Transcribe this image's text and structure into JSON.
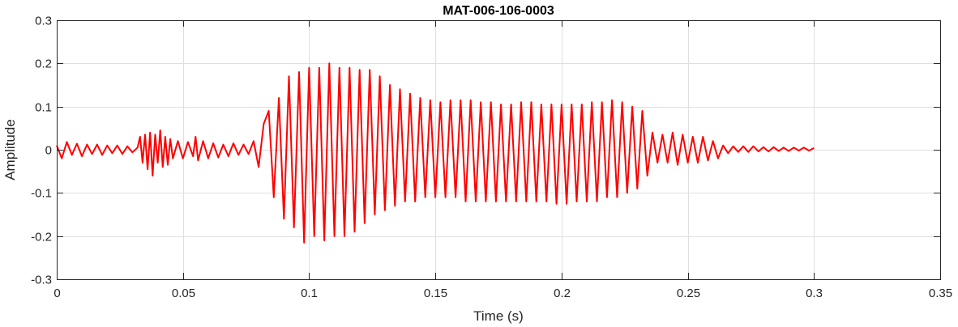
{
  "chart_data": {
    "type": "line",
    "title": "MAT-006-106-0003",
    "xlabel": "Time (s)",
    "ylabel": "Amplitude",
    "xlim": [
      0,
      0.35
    ],
    "ylim": [
      -0.3,
      0.3
    ],
    "grid": true,
    "xticks": [
      0,
      0.05,
      0.1,
      0.15,
      0.2,
      0.25,
      0.3,
      0.35
    ],
    "xtick_labels": [
      "0",
      "0.05",
      "0.1",
      "0.15",
      "0.2",
      "0.25",
      "0.3",
      "0.35"
    ],
    "yticks": [
      -0.3,
      -0.2,
      -0.1,
      0,
      0.1,
      0.2,
      0.3
    ],
    "ytick_labels": [
      "-0.3",
      "-0.2",
      "-0.1",
      "0",
      "0.1",
      "0.2",
      "0.3"
    ],
    "series": [
      {
        "color": "#ff0000",
        "points": [
          [
            0,
            0.01
          ],
          [
            0.002,
            -0.02
          ],
          [
            0.004,
            0.018
          ],
          [
            0.006,
            -0.012
          ],
          [
            0.008,
            0.014
          ],
          [
            0.01,
            -0.015
          ],
          [
            0.012,
            0.012
          ],
          [
            0.014,
            -0.01
          ],
          [
            0.016,
            0.012
          ],
          [
            0.018,
            -0.012
          ],
          [
            0.02,
            0.01
          ],
          [
            0.022,
            -0.008
          ],
          [
            0.024,
            0.01
          ],
          [
            0.026,
            -0.01
          ],
          [
            0.028,
            0.008
          ],
          [
            0.03,
            -0.006
          ],
          [
            0.032,
            0.005
          ],
          [
            0.033,
            0.03
          ],
          [
            0.034,
            -0.03
          ],
          [
            0.035,
            0.035
          ],
          [
            0.036,
            -0.045
          ],
          [
            0.037,
            0.04
          ],
          [
            0.038,
            -0.06
          ],
          [
            0.039,
            0.035
          ],
          [
            0.04,
            -0.03
          ],
          [
            0.041,
            0.045
          ],
          [
            0.042,
            -0.04
          ],
          [
            0.043,
            0.03
          ],
          [
            0.044,
            -0.035
          ],
          [
            0.045,
            0.025
          ],
          [
            0.046,
            -0.02
          ],
          [
            0.048,
            0.02
          ],
          [
            0.05,
            -0.02
          ],
          [
            0.052,
            0.018
          ],
          [
            0.054,
            -0.015
          ],
          [
            0.055,
            0.03
          ],
          [
            0.056,
            -0.025
          ],
          [
            0.058,
            0.02
          ],
          [
            0.06,
            -0.02
          ],
          [
            0.062,
            0.015
          ],
          [
            0.064,
            -0.018
          ],
          [
            0.066,
            0.012
          ],
          [
            0.068,
            -0.015
          ],
          [
            0.07,
            0.015
          ],
          [
            0.072,
            -0.012
          ],
          [
            0.074,
            0.012
          ],
          [
            0.076,
            -0.01
          ],
          [
            0.078,
            0.02
          ],
          [
            0.08,
            -0.04
          ],
          [
            0.082,
            0.06
          ],
          [
            0.084,
            0.09
          ],
          [
            0.086,
            -0.11
          ],
          [
            0.088,
            0.12
          ],
          [
            0.09,
            -0.16
          ],
          [
            0.092,
            0.17
          ],
          [
            0.094,
            -0.18
          ],
          [
            0.096,
            0.18
          ],
          [
            0.098,
            -0.215
          ],
          [
            0.1,
            0.19
          ],
          [
            0.102,
            -0.2
          ],
          [
            0.104,
            0.19
          ],
          [
            0.106,
            -0.21
          ],
          [
            0.108,
            0.2
          ],
          [
            0.11,
            -0.2
          ],
          [
            0.112,
            0.19
          ],
          [
            0.114,
            -0.2
          ],
          [
            0.116,
            0.19
          ],
          [
            0.118,
            -0.19
          ],
          [
            0.12,
            0.185
          ],
          [
            0.122,
            -0.17
          ],
          [
            0.124,
            0.185
          ],
          [
            0.126,
            -0.15
          ],
          [
            0.128,
            0.17
          ],
          [
            0.13,
            -0.14
          ],
          [
            0.132,
            0.15
          ],
          [
            0.134,
            -0.13
          ],
          [
            0.136,
            0.14
          ],
          [
            0.138,
            -0.12
          ],
          [
            0.14,
            0.13
          ],
          [
            0.142,
            -0.12
          ],
          [
            0.144,
            0.12
          ],
          [
            0.146,
            -0.11
          ],
          [
            0.148,
            0.115
          ],
          [
            0.15,
            -0.11
          ],
          [
            0.152,
            0.11
          ],
          [
            0.154,
            -0.11
          ],
          [
            0.156,
            0.115
          ],
          [
            0.158,
            -0.11
          ],
          [
            0.16,
            0.115
          ],
          [
            0.162,
            -0.12
          ],
          [
            0.164,
            0.115
          ],
          [
            0.166,
            -0.12
          ],
          [
            0.168,
            0.11
          ],
          [
            0.17,
            -0.12
          ],
          [
            0.172,
            0.11
          ],
          [
            0.174,
            -0.12
          ],
          [
            0.176,
            0.105
          ],
          [
            0.178,
            -0.12
          ],
          [
            0.18,
            0.105
          ],
          [
            0.182,
            -0.12
          ],
          [
            0.184,
            0.11
          ],
          [
            0.186,
            -0.12
          ],
          [
            0.188,
            0.11
          ],
          [
            0.19,
            -0.12
          ],
          [
            0.192,
            0.105
          ],
          [
            0.194,
            -0.12
          ],
          [
            0.196,
            0.105
          ],
          [
            0.198,
            -0.125
          ],
          [
            0.2,
            0.105
          ],
          [
            0.202,
            -0.125
          ],
          [
            0.204,
            0.105
          ],
          [
            0.206,
            -0.12
          ],
          [
            0.208,
            0.105
          ],
          [
            0.21,
            -0.12
          ],
          [
            0.212,
            0.11
          ],
          [
            0.214,
            -0.12
          ],
          [
            0.216,
            0.11
          ],
          [
            0.218,
            -0.11
          ],
          [
            0.22,
            0.115
          ],
          [
            0.222,
            -0.11
          ],
          [
            0.224,
            0.11
          ],
          [
            0.226,
            -0.1
          ],
          [
            0.228,
            0.1
          ],
          [
            0.23,
            -0.09
          ],
          [
            0.232,
            0.09
          ],
          [
            0.234,
            -0.06
          ],
          [
            0.236,
            0.04
          ],
          [
            0.238,
            -0.03
          ],
          [
            0.24,
            0.035
          ],
          [
            0.242,
            -0.03
          ],
          [
            0.244,
            0.04
          ],
          [
            0.246,
            -0.035
          ],
          [
            0.248,
            0.035
          ],
          [
            0.25,
            -0.03
          ],
          [
            0.252,
            0.03
          ],
          [
            0.254,
            -0.03
          ],
          [
            0.256,
            0.03
          ],
          [
            0.258,
            -0.025
          ],
          [
            0.26,
            0.02
          ],
          [
            0.262,
            -0.02
          ],
          [
            0.264,
            0.01
          ],
          [
            0.266,
            -0.008
          ],
          [
            0.268,
            0.008
          ],
          [
            0.27,
            -0.005
          ],
          [
            0.272,
            0.008
          ],
          [
            0.274,
            -0.005
          ],
          [
            0.276,
            0.008
          ],
          [
            0.278,
            -0.004
          ],
          [
            0.28,
            0.006
          ],
          [
            0.282,
            -0.004
          ],
          [
            0.284,
            0.006
          ],
          [
            0.286,
            -0.003
          ],
          [
            0.288,
            0.005
          ],
          [
            0.29,
            -0.003
          ],
          [
            0.292,
            0.005
          ],
          [
            0.294,
            -0.002
          ],
          [
            0.296,
            0.005
          ],
          [
            0.298,
            -0.002
          ],
          [
            0.3,
            0.004
          ]
        ]
      }
    ]
  }
}
